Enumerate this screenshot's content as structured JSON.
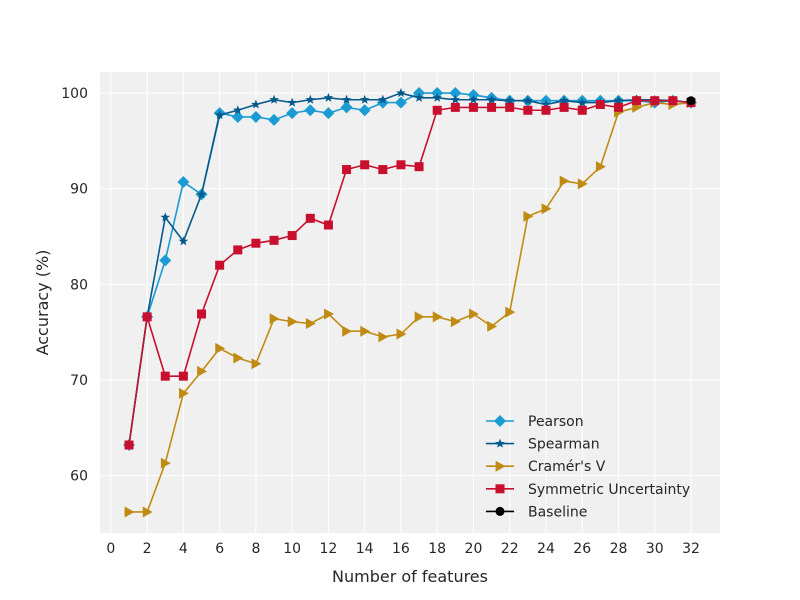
{
  "chart_data": {
    "type": "line",
    "title": "",
    "xlabel": "Number of features",
    "ylabel": "Accuracy (%)",
    "xlim": [
      -0.6,
      33.6
    ],
    "ylim": [
      54,
      102.2
    ],
    "xticks": [
      0,
      2,
      4,
      6,
      8,
      10,
      12,
      14,
      16,
      18,
      20,
      22,
      24,
      26,
      28,
      30,
      32
    ],
    "yticks": [
      60,
      70,
      80,
      90,
      100
    ],
    "grid": true,
    "legend_position": "lower-right",
    "colors": {
      "background": "#f0f0f0",
      "grid": "#ffffff",
      "pearson": "#1a9bd3",
      "spearman": "#055a8c",
      "cramers_v": "#c08b12",
      "symmetric_uncertainty": "#c8102e",
      "baseline": "#000000"
    },
    "series": [
      {
        "name": "Pearson",
        "key": "pearson",
        "marker": "diamond",
        "x": [
          1,
          2,
          3,
          4,
          5,
          6,
          7,
          8,
          9,
          10,
          11,
          12,
          13,
          14,
          15,
          16,
          17,
          18,
          19,
          20,
          21,
          22,
          23,
          24,
          25,
          26,
          27,
          28,
          29,
          30,
          31,
          32
        ],
        "values": [
          63.2,
          76.6,
          82.5,
          90.7,
          89.4,
          97.9,
          97.5,
          97.5,
          97.2,
          97.9,
          98.2,
          97.9,
          98.5,
          98.2,
          99.0,
          99.0,
          100.0,
          100.0,
          100.0,
          99.8,
          99.5,
          99.2,
          99.2,
          99.2,
          99.2,
          99.2,
          99.2,
          99.2,
          99.2,
          99.0,
          99.2,
          99.0
        ]
      },
      {
        "name": "Spearman",
        "key": "spearman",
        "marker": "star",
        "x": [
          1,
          2,
          3,
          4,
          5,
          6,
          7,
          8,
          9,
          10,
          11,
          12,
          13,
          14,
          15,
          16,
          17,
          18,
          19,
          20,
          21,
          22,
          23,
          24,
          25,
          26,
          27,
          28,
          29,
          30,
          31,
          32
        ],
        "values": [
          63.2,
          76.6,
          87.0,
          84.5,
          89.4,
          97.7,
          98.2,
          98.8,
          99.3,
          99.0,
          99.3,
          99.5,
          99.3,
          99.3,
          99.3,
          100.0,
          99.5,
          99.5,
          99.3,
          99.3,
          99.3,
          99.2,
          99.2,
          98.8,
          99.2,
          99.0,
          99.0,
          99.2,
          99.3,
          99.3,
          99.2,
          99.0
        ]
      },
      {
        "name": "Cramér's V",
        "key": "cramers_v",
        "marker": "triangle-right",
        "x": [
          1,
          2,
          3,
          4,
          5,
          6,
          7,
          8,
          9,
          10,
          11,
          12,
          13,
          14,
          15,
          16,
          17,
          18,
          19,
          20,
          21,
          22,
          23,
          24,
          25,
          26,
          27,
          28,
          29,
          30,
          31,
          32
        ],
        "values": [
          56.2,
          56.2,
          61.3,
          68.6,
          70.9,
          73.3,
          72.3,
          71.7,
          76.4,
          76.1,
          75.9,
          76.9,
          75.1,
          75.1,
          74.5,
          74.8,
          76.6,
          76.6,
          76.1,
          76.9,
          75.6,
          77.1,
          87.1,
          87.9,
          90.8,
          90.5,
          92.3,
          98.0,
          98.5,
          99.0,
          98.8,
          99.0
        ]
      },
      {
        "name": "Symmetric Uncertainty",
        "key": "symmetric_uncertainty",
        "marker": "square",
        "x": [
          1,
          2,
          3,
          4,
          5,
          6,
          7,
          8,
          9,
          10,
          11,
          12,
          13,
          14,
          15,
          16,
          17,
          18,
          19,
          20,
          21,
          22,
          23,
          24,
          25,
          26,
          27,
          28,
          29,
          30,
          31,
          32
        ],
        "values": [
          63.2,
          76.6,
          70.4,
          70.4,
          76.9,
          82.0,
          83.6,
          84.3,
          84.6,
          85.1,
          86.9,
          86.2,
          92.0,
          92.5,
          92.0,
          92.5,
          92.3,
          98.2,
          98.5,
          98.5,
          98.5,
          98.5,
          98.2,
          98.2,
          98.5,
          98.2,
          98.8,
          98.5,
          99.2,
          99.2,
          99.2,
          99.0
        ]
      },
      {
        "name": "Baseline",
        "key": "baseline",
        "marker": "circle",
        "x": [
          32
        ],
        "values": [
          99.2
        ]
      }
    ]
  }
}
